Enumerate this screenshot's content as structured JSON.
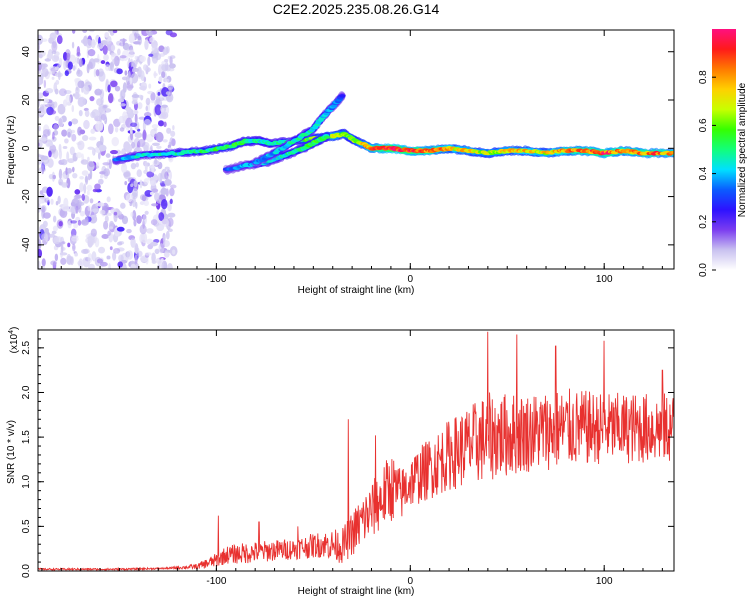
{
  "title": "C2E2.2025.235.08.26.G14",
  "colors": {
    "snr_line": "#e8312f",
    "frame": "#000000",
    "background": "#ffffff",
    "colorbar_stops": [
      "#ffffff",
      "#c9c1f0",
      "#7b3df0",
      "#2d12ff",
      "#0a5cff",
      "#00e0ff",
      "#12ff7a",
      "#36ff00",
      "#c8ff00",
      "#ffd000",
      "#ff7a00",
      "#ff1a1a",
      "#ff1080"
    ]
  },
  "chart_data": [
    {
      "type": "heatmap",
      "name": "spectrogram",
      "xlabel": "Height of straight line (km)",
      "ylabel": "Frequency (Hz)",
      "xlim": [
        -192,
        136
      ],
      "ylim": [
        -50,
        49
      ],
      "xticks": [
        -100,
        0,
        100
      ],
      "xtick_labels": [
        "-100",
        "0",
        "100"
      ],
      "yticks": [
        -40,
        -20,
        0,
        20,
        40
      ],
      "ytick_labels": [
        "-40",
        "-20",
        "0",
        "20",
        "40"
      ],
      "colorbar": {
        "label": "Normalized spectral amplitude",
        "range": [
          0,
          1
        ],
        "ticks": [
          0.0,
          0.2,
          0.4,
          0.6,
          0.8
        ],
        "tick_labels": [
          "0.0",
          "0.2",
          "0.4",
          "0.6",
          "0.8"
        ]
      },
      "noise_region_x": [
        -192,
        -122
      ],
      "ridges": [
        {
          "name": "main",
          "points": [
            [
              -152,
              -5
            ],
            [
              -140,
              -3
            ],
            [
              -120,
              -2
            ],
            [
              -105,
              -1
            ],
            [
              -92,
              1
            ],
            [
              -85,
              3
            ],
            [
              -78,
              3
            ],
            [
              -72,
              2
            ],
            [
              -60,
              3
            ],
            [
              -50,
              4
            ],
            [
              -40,
              5
            ],
            [
              -34,
              6
            ],
            [
              -28,
              3
            ],
            [
              -20,
              0
            ],
            [
              -10,
              0
            ],
            [
              0,
              -1
            ],
            [
              10,
              -1
            ],
            [
              20,
              0
            ],
            [
              30,
              -1
            ],
            [
              40,
              -2
            ],
            [
              50,
              -1
            ],
            [
              60,
              -1
            ],
            [
              70,
              -2
            ],
            [
              80,
              -1
            ],
            [
              90,
              -1
            ],
            [
              100,
              -2
            ],
            [
              110,
              -1
            ],
            [
              120,
              -2
            ],
            [
              136,
              -2
            ]
          ],
          "amplitude": [
            0.35,
            0.42,
            0.48,
            0.5,
            0.55,
            0.5,
            0.45,
            0.45,
            0.5,
            0.6,
            0.7,
            0.62,
            0.6,
            0.8,
            0.95,
            0.9,
            0.85,
            0.75,
            0.7,
            0.65,
            0.7,
            0.75,
            0.7,
            0.8,
            0.85,
            0.9,
            0.8,
            0.85,
            0.8,
            0.75
          ]
        },
        {
          "name": "secondary",
          "points": [
            [
              -95,
              -9
            ],
            [
              -85,
              -7
            ],
            [
              -75,
              -6
            ],
            [
              -65,
              -3
            ],
            [
              -55,
              0
            ],
            [
              -48,
              3
            ],
            [
              -43,
              5
            ]
          ],
          "amplitude": [
            0.3,
            0.38,
            0.42,
            0.45,
            0.5,
            0.55,
            0.5
          ]
        },
        {
          "name": "upper",
          "points": [
            [
              -80,
              -6
            ],
            [
              -70,
              -2
            ],
            [
              -60,
              3
            ],
            [
              -50,
              8
            ],
            [
              -44,
              14
            ],
            [
              -38,
              19
            ],
            [
              -35,
              22
            ]
          ],
          "amplitude": [
            0.35,
            0.4,
            0.45,
            0.45,
            0.4,
            0.35,
            0.3
          ]
        }
      ]
    },
    {
      "type": "line",
      "name": "snr",
      "xlabel": "Height of straight line (km)",
      "ylabel": "SNR (10 * v/v)",
      "y_multiplier": "(x10",
      "y_multiplier_exp": "4",
      "y_multiplier_close": ")",
      "xlim": [
        -192,
        136
      ],
      "ylim": [
        0,
        2.7
      ],
      "xticks": [
        -100,
        0,
        100
      ],
      "xtick_labels": [
        "-100",
        "0",
        "100"
      ],
      "yticks": [
        0.0,
        0.5,
        1.0,
        1.5,
        2.0,
        2.5
      ],
      "ytick_labels": [
        "0.0",
        "0.5",
        "1.0",
        "1.5",
        "2.0",
        "2.5"
      ],
      "envelope": {
        "x": [
          -192,
          -150,
          -125,
          -110,
          -100,
          -95,
          -85,
          -75,
          -60,
          -45,
          -35,
          -25,
          -15,
          -10,
          -5,
          0,
          10,
          20,
          30,
          40,
          60,
          80,
          100,
          136
        ],
        "mean": [
          0.02,
          0.02,
          0.03,
          0.05,
          0.12,
          0.18,
          0.2,
          0.22,
          0.25,
          0.3,
          0.28,
          0.55,
          0.8,
          0.95,
          0.85,
          1.0,
          1.15,
          1.3,
          1.4,
          1.5,
          1.55,
          1.6,
          1.6,
          1.6
        ],
        "spread": [
          0.01,
          0.01,
          0.01,
          0.03,
          0.08,
          0.1,
          0.12,
          0.12,
          0.12,
          0.15,
          0.2,
          0.3,
          0.35,
          0.4,
          0.3,
          0.3,
          0.35,
          0.4,
          0.45,
          0.5,
          0.45,
          0.45,
          0.4,
          0.4
        ]
      },
      "peaks": [
        [
          -99,
          0.62
        ],
        [
          -78,
          0.55
        ],
        [
          -58,
          0.5
        ],
        [
          -32,
          1.7
        ],
        [
          -18,
          1.52
        ],
        [
          40,
          2.68
        ],
        [
          55,
          2.65
        ],
        [
          75,
          2.52
        ],
        [
          100,
          2.58
        ],
        [
          130,
          2.25
        ]
      ]
    }
  ]
}
